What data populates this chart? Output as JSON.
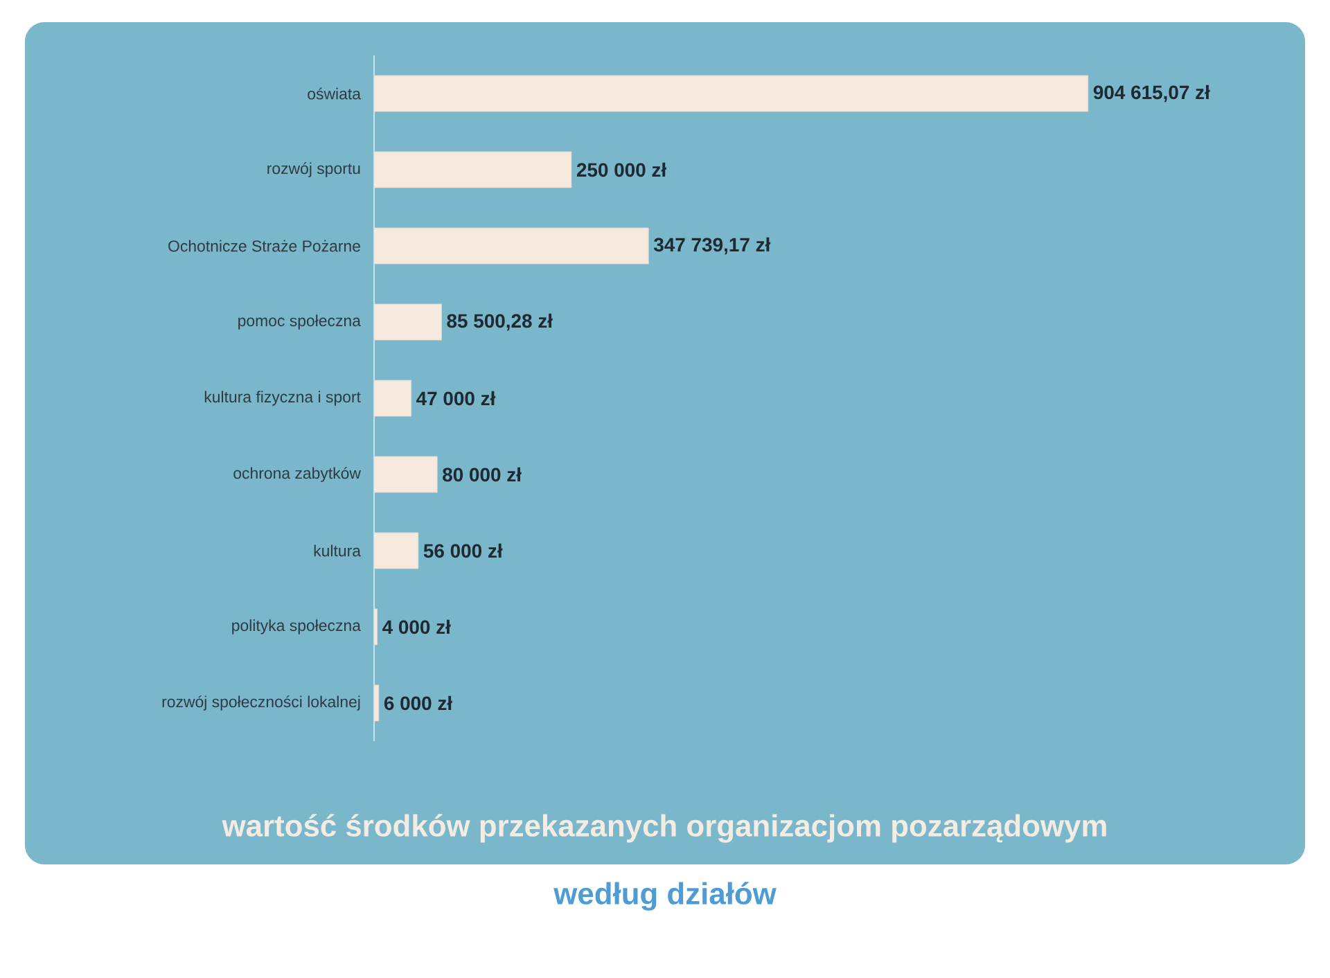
{
  "chart_data": {
    "type": "bar",
    "orientation": "horizontal",
    "title": "wartość środków przekazanych organizacjom pozarządowym",
    "subtitle": "według działów",
    "categories": [
      "oświata",
      "rozwój sportu",
      "Ochotnicze Straże Pożarne",
      "pomoc społeczna",
      "kultura fizyczna i sport",
      "ochrona zabytków",
      "kultura",
      "polityka społeczna",
      "rozwój społeczności lokalnej"
    ],
    "values": [
      904615.07,
      250000,
      347739.17,
      85500.28,
      47000,
      80000,
      56000,
      4000,
      6000
    ],
    "value_labels": [
      "904 615,07 zł",
      "250 000 zł",
      "347 739,17 zł",
      "85 500,28 zł",
      "47 000 zł",
      "80 000 zł",
      "56 000 zł",
      "4 000 zł",
      "6 000 zł"
    ],
    "color": "#f6e8dc"
  }
}
